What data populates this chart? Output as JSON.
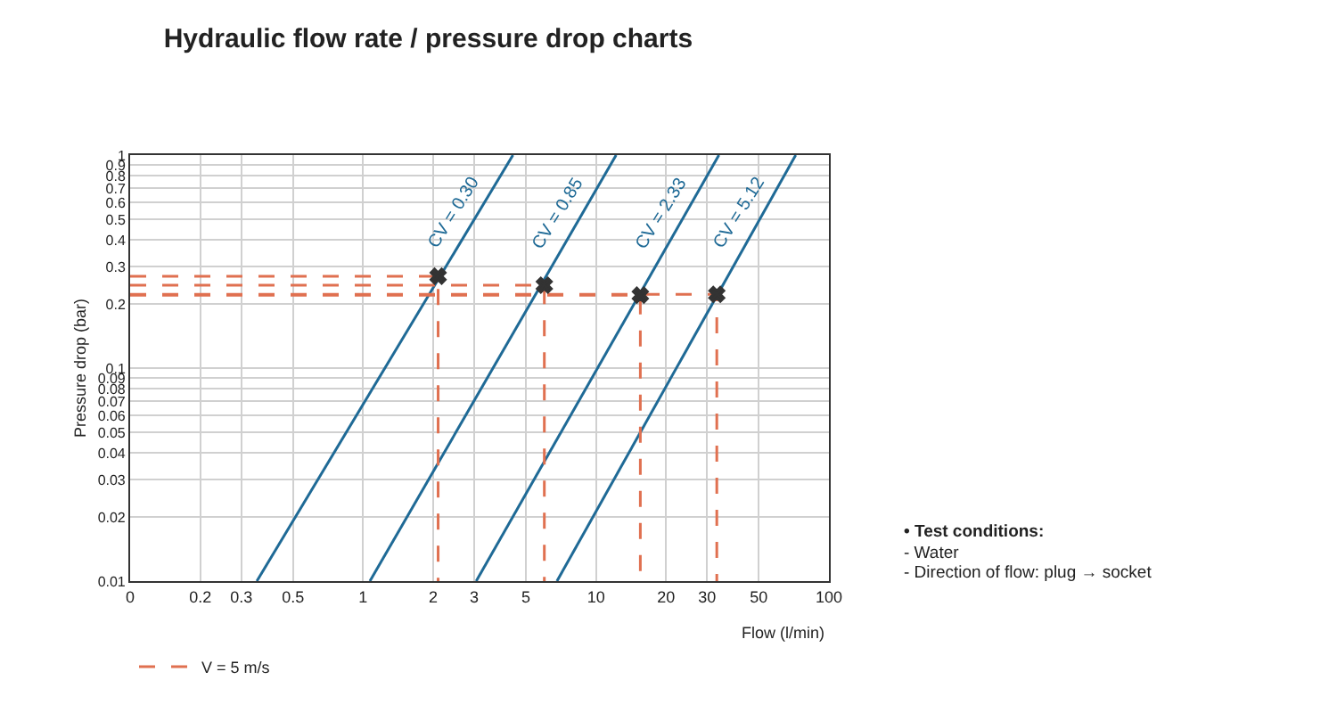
{
  "chart_data": {
    "type": "line",
    "title": "Hydraulic flow rate / pressure drop charts",
    "xlabel": "Flow (l/min)",
    "ylabel": "Pressure drop (bar)",
    "log": "xy",
    "grid": true,
    "legend": "bottom left",
    "xlim": [
      0.1,
      100
    ],
    "ylim": [
      0.01,
      1
    ],
    "xticks": [
      {
        "value": 0.1,
        "label": "0"
      },
      0.2,
      0.3,
      0.5,
      1,
      2,
      3,
      5,
      10,
      20,
      30,
      50,
      100
    ],
    "yticks": [
      0.01,
      0.02,
      0.03,
      0.04,
      0.05,
      0.06,
      0.07,
      0.08,
      0.09,
      0.1,
      0.2,
      0.3,
      0.4,
      0.5,
      0.6,
      0.7,
      0.8,
      0.9,
      1
    ],
    "series": [
      {
        "color": "#1f6a96",
        "x": [
          0.35,
          4.4
        ],
        "values": [
          0.01,
          1
        ]
      },
      {
        "color": "#1f6a96",
        "x": [
          1.07,
          12.2
        ],
        "values": [
          0.01,
          1
        ]
      },
      {
        "color": "#1f6a96",
        "x": [
          3.06,
          33.7
        ],
        "values": [
          0.01,
          1
        ]
      },
      {
        "color": "#1f6a96",
        "x": [
          6.8,
          72
        ],
        "values": [
          0.01,
          1
        ]
      },
      {
        "name": "V = 5 m/s",
        "color": "#e07050",
        "line_style": "dashed",
        "x": [
          0.1,
          2.1,
          2.1
        ],
        "values": [
          0.27,
          0.27,
          0.01
        ]
      },
      {
        "color": "#e07050",
        "line_style": "dashed",
        "x": [
          0.1,
          6.0,
          6.0
        ],
        "values": [
          0.245,
          0.245,
          0.01
        ]
      },
      {
        "color": "#e07050",
        "line_style": "dashed",
        "x": [
          0.1,
          15.5,
          15.5
        ],
        "values": [
          0.22,
          0.22,
          0.01
        ]
      },
      {
        "color": "#e07050",
        "line_style": "dashed",
        "x": [
          0.1,
          33,
          33
        ],
        "values": [
          0.222,
          0.222,
          0.01
        ]
      },
      {
        "type": "scatter",
        "color": "#333333",
        "marker": "cross",
        "x": [
          2.1,
          6.0,
          15.5,
          33
        ],
        "values": [
          0.27,
          0.245,
          0.22,
          0.222
        ]
      }
    ],
    "annotations": [
      {
        "text": "CV = 0.30",
        "x": 3.0,
        "y": 0.5
      },
      {
        "text": "CV = 0.85",
        "x": 8.46,
        "y": 0.5
      },
      {
        "text": "CV = 2.33",
        "x": 23.5,
        "y": 0.5
      },
      {
        "text": "CV = 5.12",
        "x": 50.5,
        "y": 0.5
      },
      "• Test conditions:",
      "- Water",
      "- Direction of flow: plug → socket"
    ]
  }
}
